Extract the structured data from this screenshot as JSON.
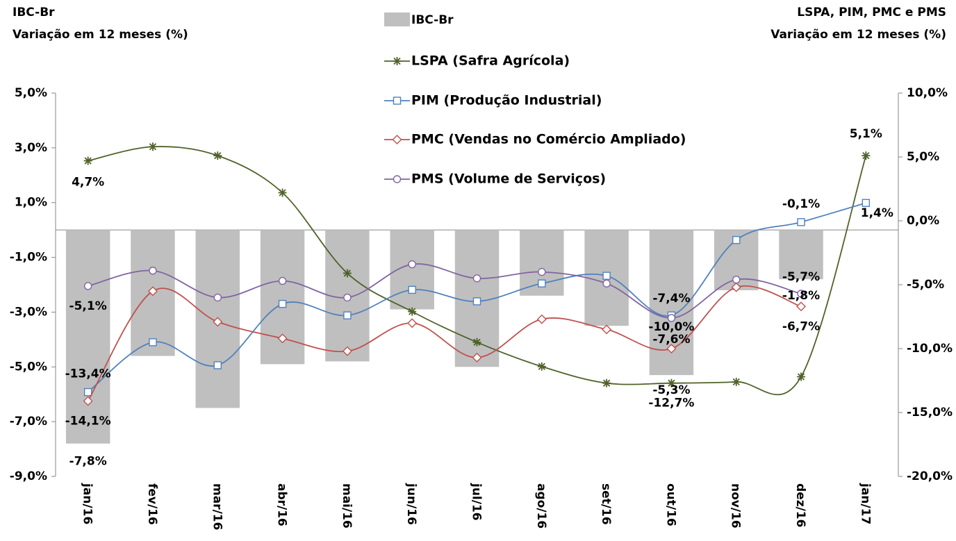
{
  "chart_data": {
    "type": "bar-line",
    "title": "IBC-Br",
    "y_label": [
      "IBC-Br",
      "Variação em 12 meses (%)"
    ],
    "y2_label": [
      "LSPA, PIM, PMC e PMS",
      "Variação em 12 meses (%)"
    ],
    "categories": [
      "jan/16",
      "fev/16",
      "mar/16",
      "abr/16",
      "mai/16",
      "jun/16",
      "jul/16",
      "ago/16",
      "set/16",
      "out/16",
      "nov/16",
      "dez/16",
      "jan/17"
    ],
    "ylim": [
      -9,
      5
    ],
    "yticks": [
      {
        "value": -9,
        "label": "-9,0%"
      },
      {
        "value": -7,
        "label": "-7,0%"
      },
      {
        "value": -5,
        "label": "-5,0%"
      },
      {
        "value": -3,
        "label": "-3,0%"
      },
      {
        "value": -1,
        "label": "-1,0%"
      },
      {
        "value": 1,
        "label": "1,0%"
      },
      {
        "value": 3,
        "label": "3,0%"
      },
      {
        "value": 5,
        "label": "5,0%"
      }
    ],
    "y2lim": [
      -20,
      10
    ],
    "y2ticks": [
      {
        "value": -20,
        "label": "-20,0%"
      },
      {
        "value": -15,
        "label": "-15,0%"
      },
      {
        "value": -10,
        "label": "-10,0%"
      },
      {
        "value": -5,
        "label": "-5,0%"
      },
      {
        "value": 0,
        "label": "0,0%"
      },
      {
        "value": 5,
        "label": "5,0%"
      },
      {
        "value": 10,
        "label": "10,0%"
      }
    ],
    "series": [
      {
        "name": "IBC-Br",
        "type": "bar",
        "color": "#bfbfbf",
        "label_color": "#000000",
        "values": [
          -7.8,
          -4.6,
          -6.5,
          -4.9,
          -4.8,
          -2.9,
          -5.0,
          -2.4,
          -3.5,
          -5.3,
          -2.2,
          -1.8,
          null
        ],
        "value_labels": [
          "-7,8%",
          null,
          null,
          null,
          null,
          null,
          null,
          null,
          null,
          "-5,3%",
          null,
          "-1,8%",
          null
        ]
      },
      {
        "name": "LSPA (Safra Agrícola)",
        "type": "line",
        "axis": "y2",
        "marker": "star",
        "color": "#4f6228",
        "label_color": "#5f7530",
        "values": [
          4.7,
          5.8,
          5.1,
          2.2,
          -4.1,
          -7.1,
          -9.5,
          -11.4,
          -12.7,
          -12.7,
          -12.6,
          -12.2,
          5.1
        ],
        "value_labels": [
          "4,7%",
          null,
          null,
          null,
          null,
          null,
          null,
          null,
          null,
          "-12,7%",
          null,
          null,
          "5,1%"
        ]
      },
      {
        "name": "PIM (Produção Industrial)",
        "type": "line",
        "axis": "y2",
        "marker": "square",
        "color": "#4f81bd",
        "label_color": "#4f81bd",
        "values": [
          -13.4,
          -9.5,
          -11.3,
          -6.5,
          -7.4,
          -5.4,
          -6.3,
          -4.9,
          -4.3,
          -7.4,
          -1.5,
          -0.1,
          1.4
        ],
        "value_labels": [
          "-13,4%",
          null,
          null,
          null,
          null,
          null,
          null,
          null,
          null,
          "-7,4%",
          null,
          "-0,1%",
          "1,4%"
        ]
      },
      {
        "name": "PMC (Vendas no Comércio Ampliado)",
        "type": "line",
        "axis": "y2",
        "marker": "diamond",
        "color": "#c0504d",
        "label_color": "#c0504d",
        "values": [
          -14.1,
          -5.5,
          -7.9,
          -9.2,
          -10.2,
          -8.0,
          -10.7,
          -7.7,
          -8.5,
          -10.0,
          -5.2,
          -6.7,
          null
        ],
        "value_labels": [
          "-14,1%",
          null,
          null,
          null,
          null,
          null,
          null,
          null,
          null,
          "-10,0%",
          null,
          "-6,7%",
          null
        ]
      },
      {
        "name": "PMS (Volume de Serviços)",
        "type": "line",
        "axis": "y2",
        "marker": "circle",
        "color": "#8064a2",
        "label_color": "#8064a2",
        "values": [
          -5.1,
          -3.9,
          -6.0,
          -4.7,
          -6.0,
          -3.4,
          -4.5,
          -4.0,
          -4.9,
          -7.6,
          -4.6,
          -5.7,
          null
        ],
        "value_labels": [
          "-5,1%",
          null,
          null,
          null,
          null,
          null,
          null,
          null,
          null,
          "-7,6%",
          null,
          "-5,7%",
          null
        ]
      }
    ]
  }
}
